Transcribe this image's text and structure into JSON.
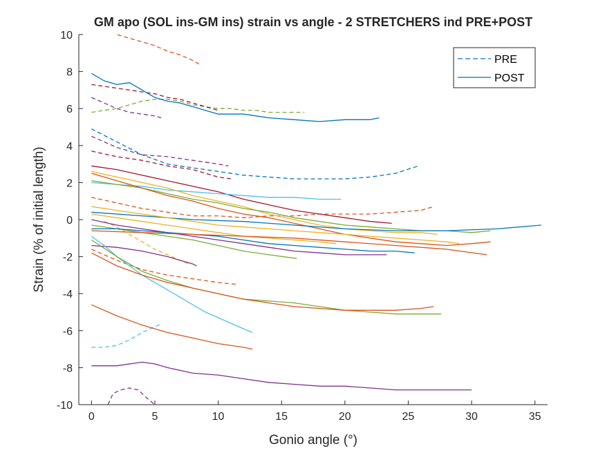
{
  "chart_data": {
    "type": "line",
    "title": "GM apo (SOL ins-GM ins) strain vs angle - 2 STRETCHERS ind PRE+POST",
    "xlabel": "Gonio angle (°)",
    "ylabel": "Strain (% of initial length)",
    "xlim": [
      -1,
      36
    ],
    "ylim": [
      -10,
      10
    ],
    "xticks": [
      "0",
      "5",
      "10",
      "15",
      "20",
      "25",
      "30",
      "35"
    ],
    "yticks": [
      "-10",
      "-8",
      "-6",
      "-4",
      "-2",
      "0",
      "2",
      "4",
      "6",
      "8",
      "10"
    ],
    "grid": false,
    "legend": {
      "placement": "top-right",
      "entries": [
        {
          "label": "PRE",
          "style": "dashed",
          "color": "#0072bd"
        },
        {
          "label": "POST",
          "style": "solid",
          "color": "#0072bd"
        }
      ]
    },
    "series": [
      {
        "style": "dashed",
        "color": "#d95319",
        "x": [
          1,
          2,
          3,
          4,
          5,
          6,
          7,
          8,
          8.5
        ],
        "y": [
          10.2,
          10.0,
          9.8,
          9.6,
          9.4,
          9.1,
          8.9,
          8.6,
          8.4
        ]
      },
      {
        "style": "dashed",
        "color": "#77ac30",
        "x": [
          0,
          1,
          2,
          3,
          4,
          5,
          6,
          7,
          8,
          9,
          10,
          11,
          12,
          13,
          14,
          15,
          16,
          16.8
        ],
        "y": [
          5.8,
          5.9,
          6.0,
          6.2,
          6.4,
          6.5,
          6.5,
          6.4,
          6.2,
          6.1,
          6.0,
          6.0,
          5.9,
          5.9,
          5.8,
          5.8,
          5.8,
          5.8
        ]
      },
      {
        "style": "dashed",
        "color": "#7e2f8e",
        "x": [
          0,
          1,
          2,
          3,
          4,
          5,
          5.5
        ],
        "y": [
          6.6,
          6.3,
          6.0,
          5.8,
          5.7,
          5.6,
          5.5
        ]
      },
      {
        "style": "dashed",
        "color": "#a2142f",
        "x": [
          0,
          1,
          2,
          3,
          4,
          5,
          6,
          7,
          8,
          9,
          10
        ],
        "y": [
          7.3,
          7.2,
          7.1,
          7.0,
          6.9,
          6.8,
          6.6,
          6.5,
          6.3,
          6.1,
          5.9
        ]
      },
      {
        "style": "dashed",
        "color": "#0072bd",
        "x": [
          0,
          2,
          4,
          6,
          8,
          10,
          12,
          14,
          16,
          18,
          20,
          22,
          24,
          25.8
        ],
        "y": [
          4.9,
          4.2,
          3.5,
          3.0,
          2.8,
          2.6,
          2.4,
          2.3,
          2.2,
          2.2,
          2.2,
          2.3,
          2.5,
          2.9
        ]
      },
      {
        "style": "dashed",
        "color": "#7e2f8e",
        "x": [
          0,
          2,
          4,
          6,
          8,
          10,
          10.8
        ],
        "y": [
          4.5,
          3.9,
          3.5,
          3.4,
          3.2,
          3.0,
          2.9
        ]
      },
      {
        "style": "dashed",
        "color": "#a2142f",
        "x": [
          0,
          2,
          4,
          6,
          8,
          10,
          11
        ],
        "y": [
          3.7,
          3.4,
          3.2,
          2.9,
          2.7,
          2.3,
          2.2
        ]
      },
      {
        "style": "dashed",
        "color": "#d95319",
        "x": [
          0,
          2,
          4,
          6,
          8,
          10,
          12,
          14,
          16,
          18,
          20,
          22,
          24,
          26,
          27
        ],
        "y": [
          1.2,
          0.9,
          0.6,
          0.4,
          0.2,
          0.2,
          0.1,
          0.2,
          0.2,
          0.3,
          0.3,
          0.3,
          0.4,
          0.5,
          0.7
        ]
      },
      {
        "style": "dashed",
        "color": "#4dbeee",
        "x": [
          0,
          1,
          2,
          3,
          4,
          5,
          5.6
        ],
        "y": [
          -6.9,
          -6.9,
          -6.8,
          -6.5,
          -6.1,
          -5.8,
          -5.6
        ]
      },
      {
        "style": "dashed",
        "color": "#edb120",
        "x": [
          1,
          2,
          3,
          4,
          5,
          6,
          7,
          7.7
        ],
        "y": [
          -0.1,
          -0.4,
          -0.8,
          -1.2,
          -1.6,
          -1.9,
          -2.2,
          -2.4
        ]
      },
      {
        "style": "dashed",
        "color": "#d95319",
        "x": [
          0,
          2,
          4,
          6,
          8,
          10,
          11.5
        ],
        "y": [
          -1.6,
          -2.2,
          -2.7,
          -3.0,
          -3.2,
          -3.4,
          -3.5
        ]
      },
      {
        "style": "dashed",
        "color": "#7e2f8e",
        "x": [
          1.3,
          1.7,
          2.3,
          3,
          3.7,
          4.3,
          5
        ],
        "y": [
          -10.0,
          -9.4,
          -9.2,
          -9.1,
          -9.2,
          -9.6,
          -10.0
        ]
      },
      {
        "style": "solid",
        "color": "#0072bd",
        "x": [
          0,
          1,
          2,
          3,
          4,
          5,
          6,
          7,
          8,
          9,
          10,
          12,
          14,
          16,
          18,
          20,
          22,
          22.7
        ],
        "y": [
          7.9,
          7.5,
          7.3,
          7.4,
          7.0,
          6.6,
          6.4,
          6.3,
          6.1,
          5.9,
          5.7,
          5.7,
          5.5,
          5.4,
          5.3,
          5.4,
          5.4,
          5.5
        ]
      },
      {
        "style": "solid",
        "color": "#a2142f",
        "x": [
          0,
          2,
          4,
          6,
          8,
          10,
          12,
          14,
          16,
          18,
          20,
          22,
          23.7
        ],
        "y": [
          2.9,
          2.7,
          2.4,
          2.1,
          1.8,
          1.5,
          1.1,
          0.8,
          0.5,
          0.3,
          0.1,
          -0.1,
          -0.2
        ]
      },
      {
        "style": "solid",
        "color": "#4dbeee",
        "x": [
          0,
          2,
          4,
          6,
          8,
          10,
          12,
          14,
          16,
          18,
          19.7
        ],
        "y": [
          2.0,
          1.9,
          1.8,
          1.6,
          1.5,
          1.4,
          1.3,
          1.2,
          1.2,
          1.1,
          1.1
        ]
      },
      {
        "style": "solid",
        "color": "#edb120",
        "x": [
          0,
          2,
          4,
          6,
          8,
          10,
          12,
          14,
          16,
          18,
          20,
          22,
          24,
          26,
          27.3
        ],
        "y": [
          2.6,
          2.3,
          2.0,
          1.7,
          1.3,
          1.0,
          0.7,
          0.3,
          0.0,
          -0.3,
          -0.5,
          -0.6,
          -0.7,
          -0.7,
          -0.8
        ]
      },
      {
        "style": "solid",
        "color": "#77ac30",
        "x": [
          0,
          2,
          4,
          6,
          8,
          10,
          12,
          14,
          16,
          18,
          20,
          22,
          24,
          26,
          28,
          30,
          31.5
        ],
        "y": [
          2.1,
          1.9,
          1.7,
          1.4,
          1.1,
          0.9,
          0.6,
          0.4,
          0.1,
          -0.1,
          -0.3,
          -0.4,
          -0.5,
          -0.6,
          -0.6,
          -0.7,
          -0.6
        ]
      },
      {
        "style": "solid",
        "color": "#d95319",
        "x": [
          0,
          2,
          4,
          6,
          8,
          10,
          12,
          14,
          16,
          18,
          20,
          22,
          24,
          26,
          28,
          30,
          31.5
        ],
        "y": [
          2.5,
          2.1,
          1.7,
          1.3,
          1.0,
          0.6,
          0.3,
          0.1,
          -0.2,
          -0.5,
          -0.8,
          -1.0,
          -1.2,
          -1.3,
          -1.4,
          -1.3,
          -1.2
        ]
      },
      {
        "style": "solid",
        "color": "#0072bd",
        "x": [
          0,
          4,
          8,
          12,
          16,
          20,
          24,
          28,
          32,
          35.5
        ],
        "y": [
          0.4,
          0.2,
          0.0,
          -0.1,
          -0.3,
          -0.5,
          -0.6,
          -0.6,
          -0.5,
          -0.3
        ]
      },
      {
        "style": "solid",
        "color": "#edb120",
        "x": [
          0,
          2,
          4,
          6,
          8,
          10,
          12,
          14,
          16,
          18,
          20,
          22,
          24,
          26,
          28,
          29
        ],
        "y": [
          0.7,
          0.5,
          0.3,
          0.1,
          -0.1,
          -0.3,
          -0.4,
          -0.5,
          -0.6,
          -0.7,
          -0.8,
          -0.9,
          -1.0,
          -1.1,
          -1.2,
          -1.3
        ]
      },
      {
        "style": "solid",
        "color": "#7e2f8e",
        "x": [
          0,
          2,
          4,
          6,
          8,
          10,
          12,
          14,
          16,
          18,
          20,
          22,
          23.3
        ],
        "y": [
          0.0,
          -0.3,
          -0.5,
          -0.7,
          -0.9,
          -1.1,
          -1.3,
          -1.5,
          -1.7,
          -1.8,
          -1.9,
          -1.9,
          -1.9
        ]
      },
      {
        "style": "solid",
        "color": "#edb120",
        "x": [
          0,
          2,
          4,
          6,
          8,
          10,
          12,
          14,
          16,
          18,
          19.3
        ],
        "y": [
          0.3,
          0.1,
          -0.1,
          -0.3,
          -0.5,
          -0.7,
          -0.9,
          -1.0,
          -1.1,
          -1.2,
          -1.3
        ]
      },
      {
        "style": "solid",
        "color": "#77ac30",
        "x": [
          0,
          2,
          4,
          6,
          8,
          10,
          12,
          14,
          16.2
        ],
        "y": [
          -0.3,
          -0.5,
          -0.7,
          -0.9,
          -1.1,
          -1.4,
          -1.7,
          -1.9,
          -2.1
        ]
      },
      {
        "style": "solid",
        "color": "#0072bd",
        "x": [
          0,
          2,
          4,
          6,
          8,
          10,
          12,
          14,
          16,
          18,
          20,
          22,
          24,
          25.5
        ],
        "y": [
          -0.5,
          -0.5,
          -0.6,
          -0.7,
          -0.8,
          -0.9,
          -1.1,
          -1.3,
          -1.4,
          -1.5,
          -1.6,
          -1.7,
          -1.7,
          -1.8
        ]
      },
      {
        "style": "solid",
        "color": "#d95319",
        "x": [
          0,
          4,
          8,
          12,
          16,
          20,
          24,
          28,
          31.2
        ],
        "y": [
          -0.6,
          -0.7,
          -0.8,
          -0.9,
          -1.0,
          -1.2,
          -1.4,
          -1.6,
          -1.9
        ]
      },
      {
        "style": "solid",
        "color": "#7e2f8e",
        "x": [
          0,
          2,
          4,
          6,
          8,
          8.3
        ],
        "y": [
          -1.4,
          -1.5,
          -1.7,
          -2.0,
          -2.4,
          -2.5
        ]
      },
      {
        "style": "solid",
        "color": "#4dbeee",
        "x": [
          0,
          1,
          2,
          3,
          4,
          5,
          6,
          7,
          8,
          9,
          10,
          11,
          12,
          12.7
        ],
        "y": [
          -0.9,
          -1.4,
          -2.0,
          -2.5,
          -3.0,
          -3.4,
          -3.8,
          -4.2,
          -4.6,
          -5.0,
          -5.3,
          -5.6,
          -5.9,
          -6.1
        ]
      },
      {
        "style": "solid",
        "color": "#77ac30",
        "x": [
          0,
          2,
          4,
          6,
          8,
          10,
          12,
          14,
          16,
          18,
          20,
          22,
          24,
          26,
          27.6
        ],
        "y": [
          -1.1,
          -2.0,
          -2.8,
          -3.3,
          -3.7,
          -4.0,
          -4.3,
          -4.4,
          -4.5,
          -4.7,
          -4.9,
          -5.0,
          -5.1,
          -5.1,
          -5.1
        ]
      },
      {
        "style": "solid",
        "color": "#d95319",
        "x": [
          0,
          2,
          4,
          6,
          8,
          10,
          12,
          14,
          16,
          18,
          20,
          22,
          24,
          26,
          27
        ],
        "y": [
          -1.8,
          -2.5,
          -3.0,
          -3.4,
          -3.7,
          -4.0,
          -4.3,
          -4.5,
          -4.7,
          -4.8,
          -4.9,
          -4.9,
          -4.9,
          -4.8,
          -4.7
        ]
      },
      {
        "style": "solid",
        "color": "#d95319",
        "x": [
          0,
          2,
          4,
          6,
          8,
          10,
          12,
          12.7
        ],
        "y": [
          -4.6,
          -5.2,
          -5.7,
          -6.1,
          -6.4,
          -6.7,
          -6.9,
          -7.0
        ]
      },
      {
        "style": "solid",
        "color": "#7e2f8e",
        "x": [
          0,
          2,
          4,
          5,
          6,
          8,
          10,
          12,
          14,
          16,
          18,
          20,
          22,
          24,
          26,
          28,
          30
        ],
        "y": [
          -7.9,
          -7.9,
          -7.7,
          -7.8,
          -8.0,
          -8.3,
          -8.4,
          -8.6,
          -8.8,
          -8.9,
          -9.0,
          -9.0,
          -9.1,
          -9.2,
          -9.2,
          -9.2,
          -9.2
        ]
      }
    ]
  }
}
